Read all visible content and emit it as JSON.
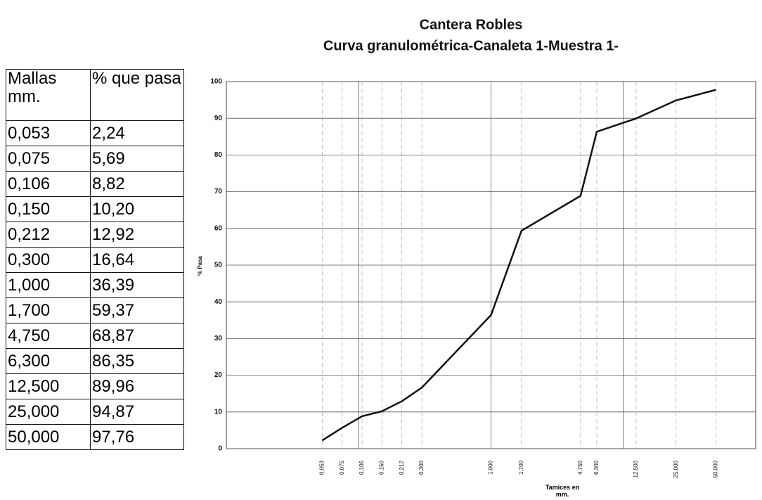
{
  "table": {
    "header": [
      "Mallas mm.",
      "% que pasa"
    ],
    "rows": [
      [
        "0,053",
        "2,24"
      ],
      [
        "0,075",
        "5,69"
      ],
      [
        "0,106",
        "8,82"
      ],
      [
        "0,150",
        "10,20"
      ],
      [
        "0,212",
        "12,92"
      ],
      [
        "0,300",
        "16,64"
      ],
      [
        "1,000",
        "36,39"
      ],
      [
        "1,700",
        "59,37"
      ],
      [
        "4,750",
        "68,87"
      ],
      [
        "6,300",
        "86,35"
      ],
      [
        "12,500",
        "89,96"
      ],
      [
        "25,000",
        "94,87"
      ],
      [
        "50,000",
        "97,76"
      ]
    ]
  },
  "chart_data": {
    "type": "line",
    "title": "Cantera Robles",
    "subtitle": "Curva granulométrica-Canaleta 1-Muestra 1-",
    "xlabel": "Tamices en mm.",
    "ylabel": "% Pasa",
    "xscale": "log",
    "grid": true,
    "x": [
      0.053,
      0.075,
      0.106,
      0.15,
      0.212,
      0.3,
      1,
      1.7,
      4.75,
      6.3,
      12.5,
      25,
      50
    ],
    "series": [
      {
        "name": "% que pasa",
        "color": "#111111",
        "values": [
          2.24,
          5.69,
          8.82,
          10.2,
          12.92,
          16.64,
          36.39,
          59.37,
          68.87,
          86.35,
          89.96,
          94.87,
          97.76
        ]
      }
    ],
    "xlim": [
      0.01,
      100
    ],
    "xticks": [
      {
        "value": 0.053,
        "label": "0,053"
      },
      {
        "value": 0.075,
        "label": "0,075"
      },
      {
        "value": 0.106,
        "label": "0,106"
      },
      {
        "value": 0.15,
        "label": "0,150"
      },
      {
        "value": 0.212,
        "label": "0,212"
      },
      {
        "value": 0.3,
        "label": "0,300"
      },
      {
        "value": 1,
        "label": "1,000"
      },
      {
        "value": 1.7,
        "label": "1,700"
      },
      {
        "value": 4.75,
        "label": "4,750"
      },
      {
        "value": 6.3,
        "label": "6,300"
      },
      {
        "value": 12.5,
        "label": "12,500"
      },
      {
        "value": 25,
        "label": "25,000"
      },
      {
        "value": 50,
        "label": "50,000"
      }
    ],
    "xgrid": [
      0.1,
      1,
      10
    ],
    "ylim": [
      0,
      100
    ],
    "yticks": [
      0,
      10,
      20,
      30,
      40,
      50,
      60,
      70,
      80,
      90,
      100
    ]
  }
}
